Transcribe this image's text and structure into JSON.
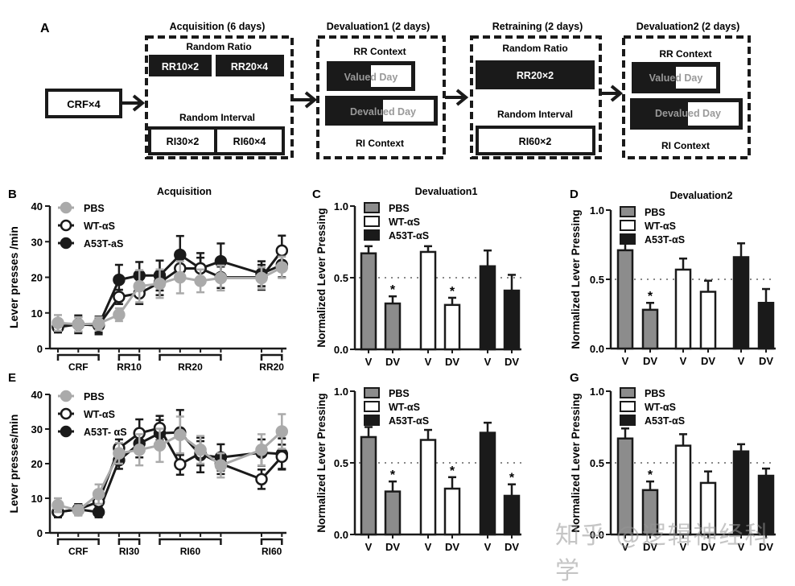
{
  "figure": {
    "panel_labels": [
      "A",
      "B",
      "C",
      "D",
      "E",
      "F",
      "G"
    ],
    "colors": {
      "pbs": "#aaaaaa",
      "pbs_bar": "#8c8c8c",
      "wt": "#ffffff",
      "a53t": "#1a1a1a",
      "axis": "#1a1a1a",
      "dotted": "#888888"
    },
    "watermark": "知乎 @逻辑神经科学"
  },
  "schematic": {
    "crf_box": "CRF×4",
    "stages": [
      {
        "title": "Acquisition (6 days)",
        "rr_heading": "Random Ratio",
        "rr_boxes": [
          "RR10×2",
          "RR20×4"
        ],
        "ri_heading": "Random Interval",
        "ri_boxes": [
          "RI30×2",
          "RI60×4"
        ]
      },
      {
        "title": "Devaluation1 (2 days)",
        "top_heading": "RR Context",
        "valued": "Valued Day",
        "devalued": "Devalued Day",
        "bottom_heading": "RI Context"
      },
      {
        "title": "Retraining (2 days)",
        "rr_heading": "Random Ratio",
        "rr_boxes": [
          "RR20×2"
        ],
        "ri_heading": "Random Interval",
        "ri_boxes": [
          "RI60×2"
        ]
      },
      {
        "title": "Devaluation2 (2 days)",
        "top_heading": "RR Context",
        "valued": "Valued Day",
        "devalued": "Devalued Day",
        "bottom_heading": "RI Context"
      }
    ]
  },
  "chart_data": [
    {
      "panel": "B",
      "type": "line",
      "title": "Acquisition",
      "xlabel": "",
      "ylabel": "Lever presses /min",
      "ylim": [
        0,
        40
      ],
      "yticks": [
        0,
        10,
        20,
        30,
        40
      ],
      "x": [
        1,
        2,
        3,
        4,
        5,
        6,
        7,
        8,
        9,
        11,
        12
      ],
      "groups": [
        {
          "label": "CRF",
          "from": 1,
          "to": 3
        },
        {
          "label": "RR10",
          "from": 4,
          "to": 5
        },
        {
          "label": "RR20",
          "from": 6,
          "to": 9
        },
        {
          "label": "RR20",
          "from": 11,
          "to": 12
        }
      ],
      "legend": "top-left",
      "series": [
        {
          "name": "PBS",
          "marker": "filled-gray",
          "values": [
            7.2,
            6.8,
            7.0,
            9.5,
            17.5,
            18.2,
            20.0,
            19.0,
            19.8,
            19.8,
            22.8
          ],
          "errors": [
            2.2,
            2.0,
            1.8,
            1.8,
            4.5,
            4.0,
            4.5,
            3.2,
            3.5,
            3.0,
            3.0
          ]
        },
        {
          "name": "WT-αS",
          "marker": "open-black",
          "values": [
            6.0,
            6.8,
            6.5,
            14.5,
            15.5,
            18.5,
            22.5,
            22.5,
            20.0,
            20.0,
            27.5
          ],
          "errors": [
            1.5,
            2.0,
            2.0,
            2.0,
            3.0,
            3.5,
            3.5,
            3.0,
            3.0,
            3.5,
            4.2
          ]
        },
        {
          "name": "A53T-aS",
          "marker": "filled-black",
          "values": [
            6.2,
            6.8,
            6.5,
            19.3,
            20.5,
            20.5,
            26.3,
            22.5,
            24.5,
            21.0,
            23.5
          ],
          "errors": [
            1.5,
            2.5,
            2.5,
            4.2,
            3.8,
            4.2,
            5.3,
            4.3,
            5.0,
            3.5,
            3.5
          ]
        }
      ]
    },
    {
      "panel": "C",
      "type": "bar",
      "title": "Devaluation1",
      "ylabel": "Normalized Lever Pressing",
      "ylim": [
        0,
        1.0
      ],
      "yticks": [
        "0.0",
        "0.5",
        "1.0"
      ],
      "reference_line": 0.5,
      "categories": [
        "V",
        "DV",
        "V",
        "DV",
        "V",
        "DV"
      ],
      "legend": "top-left",
      "series": [
        {
          "name": "PBS",
          "values": [
            0.67,
            0.32
          ],
          "errors": [
            0.05,
            0.05
          ],
          "significant": [
            false,
            true
          ]
        },
        {
          "name": "WT-αS",
          "values": [
            0.68,
            0.31
          ],
          "errors": [
            0.04,
            0.05
          ],
          "significant": [
            false,
            true
          ]
        },
        {
          "name": "A53T-αS",
          "values": [
            0.58,
            0.41
          ],
          "errors": [
            0.11,
            0.11
          ],
          "significant": [
            false,
            false
          ]
        }
      ]
    },
    {
      "panel": "D",
      "type": "bar",
      "title": "Devaluation2",
      "ylabel": "Normalized Lever Pressing",
      "ylim": [
        0,
        1.0
      ],
      "yticks": [
        "0.0",
        "0.5",
        "1.0"
      ],
      "reference_line": 0.5,
      "categories": [
        "V",
        "DV",
        "V",
        "DV",
        "V",
        "DV"
      ],
      "legend": "top-left",
      "series": [
        {
          "name": "PBS",
          "values": [
            0.71,
            0.28
          ],
          "errors": [
            0.05,
            0.05
          ],
          "significant": [
            false,
            true
          ]
        },
        {
          "name": "WT-αS",
          "values": [
            0.57,
            0.41
          ],
          "errors": [
            0.08,
            0.08
          ],
          "significant": [
            false,
            false
          ]
        },
        {
          "name": "A53T-αS",
          "values": [
            0.66,
            0.33
          ],
          "errors": [
            0.1,
            0.1
          ],
          "significant": [
            false,
            false
          ]
        }
      ]
    },
    {
      "panel": "E",
      "type": "line",
      "title": "",
      "xlabel": "",
      "ylabel": "Lever presses/min",
      "ylim": [
        0,
        40
      ],
      "yticks": [
        0,
        10,
        20,
        30,
        40
      ],
      "x": [
        1,
        2,
        3,
        4,
        5,
        6,
        7,
        8,
        9,
        11,
        12
      ],
      "groups": [
        {
          "label": "CRF",
          "from": 1,
          "to": 3
        },
        {
          "label": "RI30",
          "from": 4,
          "to": 5
        },
        {
          "label": "RI60",
          "from": 6,
          "to": 9
        },
        {
          "label": "RI60",
          "from": 11,
          "to": 12
        }
      ],
      "legend": "top-left",
      "series": [
        {
          "name": "PBS",
          "marker": "filled-gray",
          "values": [
            8.0,
            6.5,
            11.2,
            23.0,
            24.0,
            25.3,
            28.3,
            24.0,
            19.5,
            24.0,
            29.3
          ],
          "errors": [
            2.0,
            1.5,
            2.8,
            3.0,
            4.5,
            4.8,
            5.3,
            4.0,
            3.5,
            4.5,
            5.0
          ]
        },
        {
          "name": "WT-αS",
          "marker": "open-black",
          "values": [
            6.0,
            6.8,
            9.0,
            24.5,
            28.8,
            30.3,
            19.8,
            23.0,
            20.0,
            15.5,
            22.0
          ],
          "errors": [
            1.5,
            1.5,
            2.0,
            2.5,
            4.0,
            3.5,
            3.0,
            3.5,
            3.0,
            2.8,
            3.5
          ]
        },
        {
          "name": "A53T- αS",
          "marker": "filled-black",
          "values": [
            6.0,
            6.8,
            6.0,
            21.0,
            25.8,
            28.8,
            29.0,
            22.5,
            21.8,
            23.2,
            22.8
          ],
          "errors": [
            1.5,
            1.5,
            1.5,
            2.5,
            4.0,
            3.8,
            6.5,
            5.0,
            3.8,
            3.8,
            4.5
          ]
        }
      ]
    },
    {
      "panel": "F",
      "type": "bar",
      "title": "",
      "ylabel": "Normalized Lever Pressing",
      "ylim": [
        0,
        1.0
      ],
      "yticks": [
        "0.0",
        "0.5",
        "1.0"
      ],
      "reference_line": 0.5,
      "categories": [
        "V",
        "DV",
        "V",
        "DV",
        "V",
        "DV"
      ],
      "legend": "top-left",
      "series": [
        {
          "name": "PBS",
          "values": [
            0.68,
            0.3
          ],
          "errors": [
            0.07,
            0.07
          ],
          "significant": [
            false,
            true
          ]
        },
        {
          "name": "WT-αS",
          "values": [
            0.66,
            0.32
          ],
          "errors": [
            0.07,
            0.08
          ],
          "significant": [
            false,
            true
          ]
        },
        {
          "name": "A53T-αS",
          "values": [
            0.71,
            0.27
          ],
          "errors": [
            0.07,
            0.08
          ],
          "significant": [
            false,
            true
          ]
        }
      ]
    },
    {
      "panel": "G",
      "type": "bar",
      "title": "",
      "ylabel": "Normalized Lever Pressing",
      "ylim": [
        0,
        1.0
      ],
      "yticks": [
        "0.0",
        "0.5",
        "1.0"
      ],
      "reference_line": 0.5,
      "categories": [
        "V",
        "DV",
        "V",
        "DV",
        "V",
        "DV"
      ],
      "legend": "top-left",
      "series": [
        {
          "name": "PBS",
          "values": [
            0.67,
            0.31
          ],
          "errors": [
            0.07,
            0.06
          ],
          "significant": [
            false,
            true
          ]
        },
        {
          "name": "WT-αS",
          "values": [
            0.62,
            0.36
          ],
          "errors": [
            0.08,
            0.08
          ],
          "significant": [
            false,
            false
          ]
        },
        {
          "name": "A53T-αS",
          "values": [
            0.58,
            0.41
          ],
          "errors": [
            0.05,
            0.05
          ],
          "significant": [
            false,
            false
          ]
        }
      ]
    }
  ]
}
